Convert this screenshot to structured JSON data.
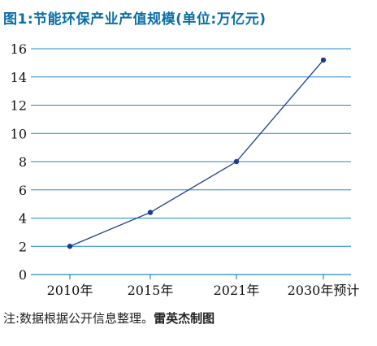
{
  "title": "图1:节能环保产业产值规模(单位:万亿元)",
  "note": {
    "text": "注:数据根据公开信息整理。",
    "credit": "雷英杰制图"
  },
  "colors": {
    "title": "#0a6fa8",
    "grid": "#1e8ac6",
    "line": "#1a3c8c",
    "marker": "#1a3c8c"
  },
  "chart_data": {
    "type": "line",
    "title": "图1:节能环保产业产值规模(单位:万亿元)",
    "categories": [
      "2010年",
      "2015年",
      "2021年",
      "2030年预计"
    ],
    "series": [
      {
        "values": [
          2.0,
          4.4,
          8.0,
          15.2
        ]
      }
    ],
    "yticks": [
      "0",
      "2",
      "4",
      "6",
      "8",
      "10",
      "12",
      "14",
      "16"
    ],
    "ylim": [
      0,
      16
    ],
    "grid": true,
    "legend": "none"
  }
}
